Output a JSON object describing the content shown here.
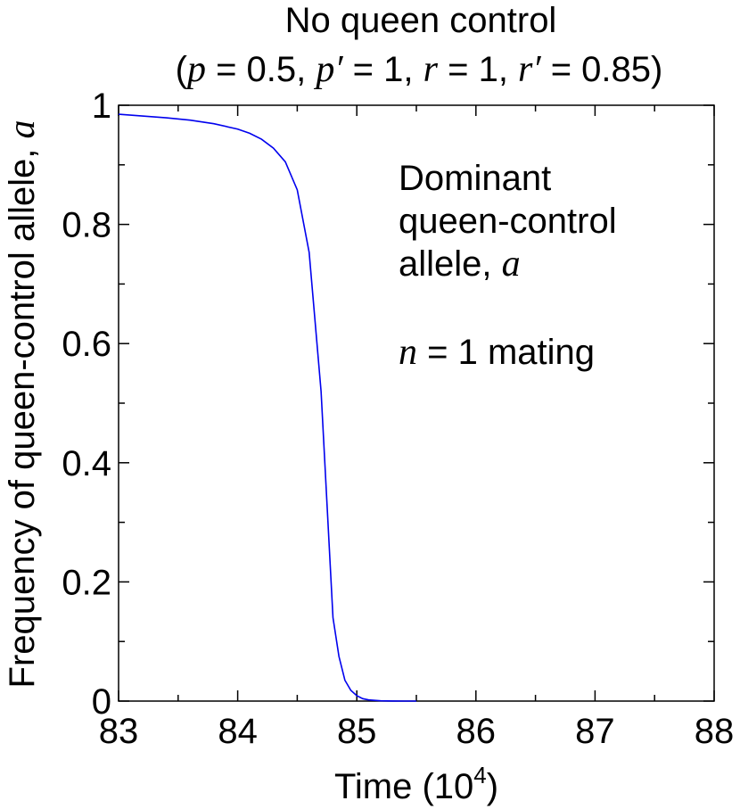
{
  "chart_data": {
    "type": "line",
    "title": "No queen control",
    "subtitle": {
      "open": "(",
      "p_symbol": "p",
      "p_value": " = 0.5, ",
      "p_prime_symbol": "p′",
      "p_prime_value": " = 1, ",
      "r_symbol": "r",
      "r_value": " = 1, ",
      "r_prime_symbol": "r′",
      "r_prime_value": " = 0.85)"
    },
    "xlabel": "Time (10",
    "xlabel_exponent": "4",
    "xlabel_close": ")",
    "ylabel": "Frequency of queen-control allele, ",
    "ylabel_symbol": "a",
    "xlim": [
      83,
      88
    ],
    "ylim": [
      0,
      1
    ],
    "x_ticks": [
      "83",
      "84",
      "85",
      "86",
      "87",
      "88"
    ],
    "y_ticks": [
      "0",
      "0.2",
      "0.4",
      "0.6",
      "0.8",
      "1"
    ],
    "grid": false,
    "annotation": {
      "line1": "Dominant",
      "line2": "queen-control",
      "line3_text": "allele, ",
      "line3_symbol": "a",
      "mating_symbol": "n",
      "mating_text": " = 1 mating"
    },
    "line_color": "#0000ee",
    "series": [
      {
        "x": [
          83.0,
          83.2,
          83.4,
          83.6,
          83.8,
          84.0,
          84.1,
          84.2,
          84.3,
          84.4,
          84.5,
          84.6,
          84.7,
          84.75,
          84.8,
          84.85,
          84.9,
          84.95,
          85.0,
          85.05,
          85.1,
          85.2,
          85.3,
          85.4,
          85.5
        ],
        "y": [
          0.985,
          0.982,
          0.979,
          0.975,
          0.969,
          0.96,
          0.953,
          0.943,
          0.928,
          0.905,
          0.858,
          0.753,
          0.52,
          0.33,
          0.14,
          0.075,
          0.035,
          0.018,
          0.009,
          0.004,
          0.002,
          0.0005,
          0.0001,
          0.0,
          0.0
        ]
      }
    ]
  }
}
